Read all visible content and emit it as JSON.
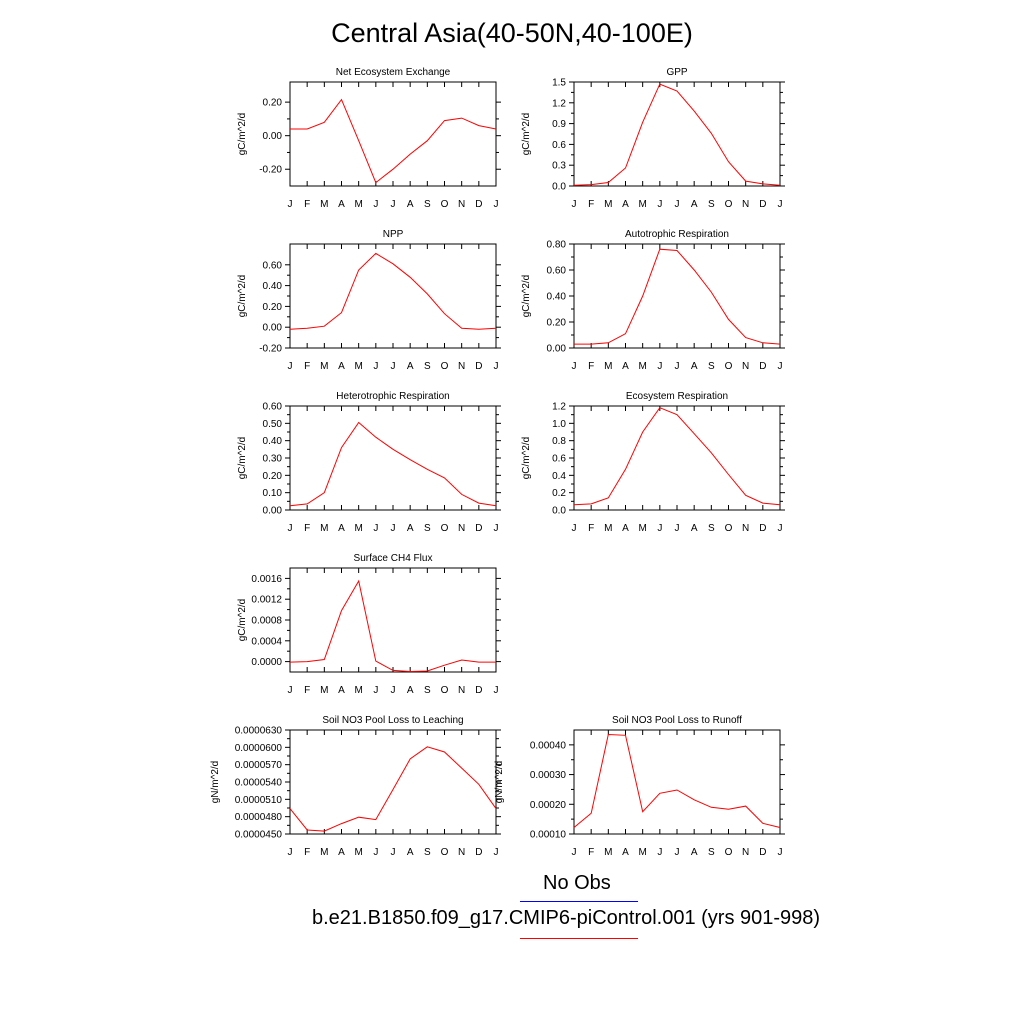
{
  "title": "Central Asia(40-50N,40-100E)",
  "colors": {
    "model_line": "#ff0000",
    "obs_line": "#0000ff",
    "axis": "#000000"
  },
  "legend": {
    "obs_label": "No Obs",
    "model_label": "b.e21.B1850.f09_g17.CMIP6-piControl.001 (yrs 901-998)"
  },
  "chart_data": [
    {
      "type": "line",
      "title": "Net Ecosystem Exchange",
      "ylabel": "gC/m^2/d",
      "categories": [
        "J",
        "F",
        "M",
        "A",
        "M",
        "J",
        "J",
        "A",
        "S",
        "O",
        "N",
        "D",
        "J"
      ],
      "ylim": [
        -0.3,
        0.32
      ],
      "yticks": [
        "0.20",
        "0.00",
        "-0.20"
      ],
      "ytick_values": [
        0.2,
        0.0,
        -0.2
      ],
      "series": [
        {
          "values": [
            0.04,
            0.04,
            0.08,
            0.215,
            -0.03,
            -0.28,
            -0.2,
            -0.11,
            -0.03,
            0.09,
            0.105,
            0.06,
            0.04
          ]
        }
      ]
    },
    {
      "type": "line",
      "title": "GPP",
      "ylabel": "gC/m^2/d",
      "categories": [
        "J",
        "F",
        "M",
        "A",
        "M",
        "J",
        "J",
        "A",
        "S",
        "O",
        "N",
        "D",
        "J"
      ],
      "ylim": [
        0,
        1.5
      ],
      "yticks": [
        "1.5",
        "1.2",
        "0.9",
        "0.6",
        "0.3",
        "0.0"
      ],
      "ytick_values": [
        1.5,
        1.2,
        0.9,
        0.6,
        0.3,
        0.0
      ],
      "series": [
        {
          "values": [
            0.01,
            0.02,
            0.05,
            0.26,
            0.92,
            1.47,
            1.37,
            1.08,
            0.76,
            0.35,
            0.07,
            0.03,
            0.01
          ]
        }
      ]
    },
    {
      "type": "line",
      "title": "NPP",
      "ylabel": "gC/m^2/d",
      "categories": [
        "J",
        "F",
        "M",
        "A",
        "M",
        "J",
        "J",
        "A",
        "S",
        "O",
        "N",
        "D",
        "J"
      ],
      "ylim": [
        -0.2,
        0.8
      ],
      "yticks": [
        "0.60",
        "0.40",
        "0.20",
        "0.00",
        "-0.20"
      ],
      "ytick_values": [
        0.6,
        0.4,
        0.2,
        0.0,
        -0.2
      ],
      "series": [
        {
          "values": [
            -0.02,
            -0.01,
            0.01,
            0.14,
            0.55,
            0.71,
            0.61,
            0.48,
            0.32,
            0.13,
            -0.01,
            -0.02,
            -0.01
          ]
        }
      ]
    },
    {
      "type": "line",
      "title": "Autotrophic Respiration",
      "ylabel": "gC/m^2/d",
      "categories": [
        "J",
        "F",
        "M",
        "A",
        "M",
        "J",
        "J",
        "A",
        "S",
        "O",
        "N",
        "D",
        "J"
      ],
      "ylim": [
        0,
        0.8
      ],
      "yticks": [
        "0.80",
        "0.60",
        "0.40",
        "0.20",
        "0.00"
      ],
      "ytick_values": [
        0.8,
        0.6,
        0.4,
        0.2,
        0.0
      ],
      "series": [
        {
          "values": [
            0.03,
            0.03,
            0.04,
            0.11,
            0.4,
            0.76,
            0.75,
            0.6,
            0.43,
            0.22,
            0.08,
            0.04,
            0.03
          ]
        }
      ]
    },
    {
      "type": "line",
      "title": "Heterotrophic Respiration",
      "ylabel": "gC/m^2/d",
      "categories": [
        "J",
        "F",
        "M",
        "A",
        "M",
        "J",
        "J",
        "A",
        "S",
        "O",
        "N",
        "D",
        "J"
      ],
      "ylim": [
        0,
        0.6
      ],
      "yticks": [
        "0.60",
        "0.50",
        "0.40",
        "0.30",
        "0.20",
        "0.10",
        "0.00"
      ],
      "ytick_values": [
        0.6,
        0.5,
        0.4,
        0.3,
        0.2,
        0.1,
        0.0
      ],
      "series": [
        {
          "values": [
            0.025,
            0.035,
            0.1,
            0.36,
            0.505,
            0.42,
            0.35,
            0.29,
            0.235,
            0.185,
            0.09,
            0.04,
            0.025
          ]
        }
      ]
    },
    {
      "type": "line",
      "title": "Ecosystem Respiration",
      "ylabel": "gC/m^2/d",
      "categories": [
        "J",
        "F",
        "M",
        "A",
        "M",
        "J",
        "J",
        "A",
        "S",
        "O",
        "N",
        "D",
        "J"
      ],
      "ylim": [
        0,
        1.2
      ],
      "yticks": [
        "1.2",
        "1.0",
        "0.8",
        "0.6",
        "0.4",
        "0.2",
        "0.0"
      ],
      "ytick_values": [
        1.2,
        1.0,
        0.8,
        0.6,
        0.4,
        0.2,
        0.0
      ],
      "series": [
        {
          "values": [
            0.06,
            0.07,
            0.14,
            0.47,
            0.9,
            1.18,
            1.1,
            0.88,
            0.66,
            0.41,
            0.17,
            0.08,
            0.06
          ]
        }
      ]
    },
    {
      "type": "line",
      "title": "Surface CH4 Flux",
      "ylabel": "gC/m^2/d",
      "categories": [
        "J",
        "F",
        "M",
        "A",
        "M",
        "J",
        "J",
        "A",
        "S",
        "O",
        "N",
        "D",
        "J"
      ],
      "ylim": [
        -0.0002,
        0.0018
      ],
      "yticks": [
        "0.0016",
        "0.0012",
        "0.0008",
        "0.0004",
        "0.0000"
      ],
      "ytick_values": [
        0.0016,
        0.0012,
        0.0008,
        0.0004,
        0.0
      ],
      "series": [
        {
          "values": [
            -1e-05,
            0.0,
            4e-05,
            0.00098,
            0.00155,
            1e-05,
            -0.00017,
            -0.00019,
            -0.00018,
            -7e-05,
            3e-05,
            -1e-05,
            -1e-05
          ]
        }
      ]
    },
    {
      "type": "line",
      "title": "Soil NO3 Pool Loss to Leaching",
      "ylabel": "gN/m^2/d",
      "categories": [
        "J",
        "F",
        "M",
        "A",
        "M",
        "J",
        "J",
        "A",
        "S",
        "O",
        "N",
        "D",
        "J"
      ],
      "ylim": [
        4.5e-05,
        6.3e-05
      ],
      "yticks": [
        "0.0000630",
        "0.0000600",
        "0.0000570",
        "0.0000540",
        "0.0000510",
        "0.0000480",
        "0.0000450"
      ],
      "ytick_values": [
        6.3e-05,
        6e-05,
        5.7e-05,
        5.4e-05,
        5.1e-05,
        4.8e-05,
        4.5e-05
      ],
      "series": [
        {
          "values": [
            4.94e-05,
            4.57e-05,
            4.55e-05,
            4.68e-05,
            4.79e-05,
            4.75e-05,
            5.27e-05,
            5.8e-05,
            6.01e-05,
            5.92e-05,
            5.64e-05,
            5.36e-05,
            4.94e-05
          ]
        }
      ]
    },
    {
      "type": "line",
      "title": "Soil NO3 Pool Loss to Runoff",
      "ylabel": "gN/m^2/d",
      "categories": [
        "J",
        "F",
        "M",
        "A",
        "M",
        "J",
        "J",
        "A",
        "S",
        "O",
        "N",
        "D",
        "J"
      ],
      "ylim": [
        0.0001,
        0.00045
      ],
      "yticks": [
        "0.00040",
        "0.00030",
        "0.00020",
        "0.00010"
      ],
      "ytick_values": [
        0.0004,
        0.0003,
        0.0002,
        0.0001
      ],
      "series": [
        {
          "values": [
            0.000122,
            0.00017,
            0.000435,
            0.000432,
            0.000175,
            0.000237,
            0.000248,
            0.000215,
            0.00019,
            0.000183,
            0.000194,
            0.000136,
            0.000122
          ]
        }
      ]
    }
  ]
}
